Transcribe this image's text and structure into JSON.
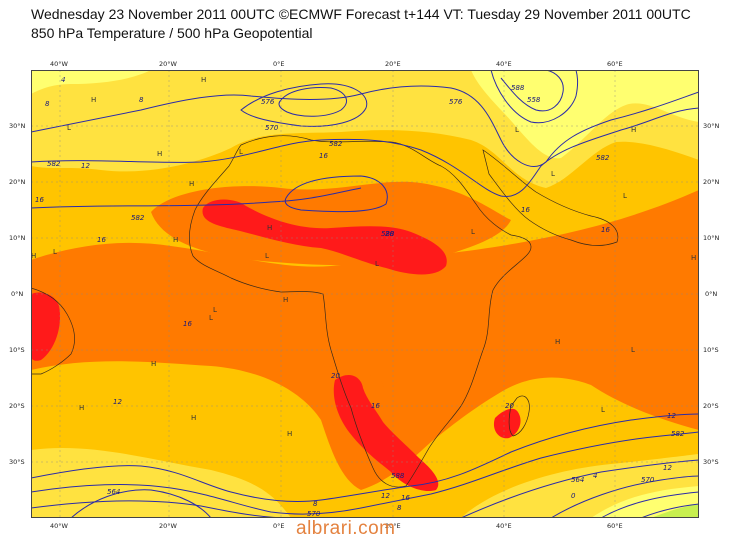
{
  "header": {
    "title_line1": "Wednesday 23 November 2011 00UTC ©ECMWF Forecast t+144 VT: Tuesday 29 November 2011 00UTC",
    "title_line2": "850 hPa Temperature / 500 hPa Geopotential"
  },
  "axes": {
    "lon_top": [
      "40°W",
      "20°W",
      "0°E",
      "20°E",
      "40°E",
      "60°E"
    ],
    "lon_bottom": [
      "40°W",
      "20°W",
      "0°E",
      "20°E",
      "40°E",
      "60°E"
    ],
    "lat_left": [
      "30°N",
      "20°N",
      "10°N",
      "0°N",
      "10°S",
      "20°S",
      "30°S"
    ],
    "lat_right": [
      "30°N",
      "20°N",
      "10°N",
      "0°N",
      "10°S",
      "20°S",
      "30°S"
    ]
  },
  "contour_labels": {
    "geopotential": [
      "582",
      "582",
      "582",
      "576",
      "588",
      "582",
      "588",
      "576",
      "570",
      "564",
      "558",
      "570",
      "564",
      "570",
      "582",
      "588"
    ],
    "temperature": [
      "4",
      "8",
      "8",
      "12",
      "16",
      "16",
      "16",
      "16",
      "16",
      "20",
      "20",
      "16",
      "12",
      "16",
      "20",
      "16",
      "12",
      "8",
      "4",
      "0",
      "12",
      "8",
      "12"
    ]
  },
  "pressure_centres": [
    "H",
    "H",
    "L",
    "H",
    "H",
    "H",
    "L",
    "H",
    "L",
    "L",
    "L",
    "H",
    "L",
    "H",
    "L",
    "H",
    "L",
    "L",
    "H",
    "L",
    "H",
    "L",
    "H",
    "H",
    "H",
    "L",
    "H",
    "L"
  ],
  "colors": {
    "band_lt4": "#c8f050",
    "band_4_8": "#ffff70",
    "band_8_12": "#ffe240",
    "band_12_16": "#ffc400",
    "band_16_20": "#ff7a00",
    "band_gt20": "#ff1a1a",
    "isohypse": "#2b2ba8",
    "coastline": "#3a2a1a"
  },
  "watermark": "albrari.com"
}
